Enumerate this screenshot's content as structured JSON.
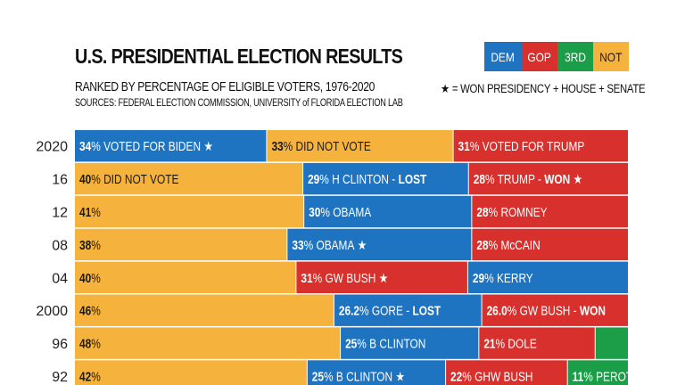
{
  "header": {
    "title": "U.S. PRESIDENTIAL ELECTION RESULTS",
    "subtitle": "RANKED BY PERCENTAGE OF ELIGIBLE VOTERS, 1976-2020",
    "sources": "SOURCES: FEDERAL ELECTION COMMISSION, UNIVERSITY of FLORIDA ELECTION LAB",
    "note": "★ = WON PRESIDENCY + HOUSE + SENATE"
  },
  "legend": [
    {
      "label": "DEM",
      "color": "#1e74c1"
    },
    {
      "label": "GOP",
      "color": "#d8312d"
    },
    {
      "label": "3RD",
      "color": "#1c9e49"
    },
    {
      "label": "NOT",
      "color": "#f5b23d"
    }
  ],
  "chart_data": {
    "type": "bar",
    "stacked": true,
    "orientation": "horizontal",
    "categories": [
      "2020",
      "16",
      "12",
      "08",
      "04",
      "2000",
      "96",
      "92"
    ],
    "rows": [
      {
        "year": "2020",
        "segments": [
          {
            "party": "DEM",
            "pct": 34,
            "num": "34",
            "text": "VOTED FOR BIDEN",
            "bold": "",
            "star": true
          },
          {
            "party": "NOT",
            "pct": 33,
            "num": "33",
            "text": "DID NOT VOTE",
            "bold": "",
            "star": false
          },
          {
            "party": "GOP",
            "pct": 31,
            "num": "31",
            "text": "VOTED FOR TRUMP",
            "bold": "",
            "star": false
          }
        ]
      },
      {
        "year": "16",
        "segments": [
          {
            "party": "NOT",
            "pct": 40,
            "num": "40",
            "text": "DID NOT VOTE",
            "bold": "",
            "star": false
          },
          {
            "party": "DEM",
            "pct": 29,
            "num": "29",
            "text": "H CLINTON -",
            "bold": "LOST",
            "star": false
          },
          {
            "party": "GOP",
            "pct": 28,
            "num": "28",
            "text": "TRUMP -",
            "bold": "WON",
            "star": true
          }
        ]
      },
      {
        "year": "12",
        "segments": [
          {
            "party": "NOT",
            "pct": 41,
            "num": "41",
            "text": "",
            "bold": "",
            "star": false
          },
          {
            "party": "DEM",
            "pct": 30,
            "num": "30",
            "text": "OBAMA",
            "bold": "",
            "star": false
          },
          {
            "party": "GOP",
            "pct": 28,
            "num": "28",
            "text": "ROMNEY",
            "bold": "",
            "star": false
          }
        ]
      },
      {
        "year": "08",
        "segments": [
          {
            "party": "NOT",
            "pct": 38,
            "num": "38",
            "text": "",
            "bold": "",
            "star": false
          },
          {
            "party": "DEM",
            "pct": 33,
            "num": "33",
            "text": "OBAMA",
            "bold": "",
            "star": true
          },
          {
            "party": "GOP",
            "pct": 28,
            "num": "28",
            "text": "McCAIN",
            "bold": "",
            "star": false
          }
        ]
      },
      {
        "year": "04",
        "segments": [
          {
            "party": "NOT",
            "pct": 40,
            "num": "40",
            "text": "",
            "bold": "",
            "star": false
          },
          {
            "party": "GOP",
            "pct": 31,
            "num": "31",
            "text": "GW BUSH",
            "bold": "",
            "star": true
          },
          {
            "party": "DEM",
            "pct": 29,
            "num": "29",
            "text": "KERRY",
            "bold": "",
            "star": false
          }
        ]
      },
      {
        "year": "2000",
        "segments": [
          {
            "party": "NOT",
            "pct": 46,
            "num": "46",
            "text": "",
            "bold": "",
            "star": false
          },
          {
            "party": "DEM",
            "pct": 26.2,
            "num": "26.2",
            "text": "GORE -",
            "bold": "LOST",
            "star": false
          },
          {
            "party": "GOP",
            "pct": 26.0,
            "num": "26.0",
            "text": "GW BUSH -",
            "bold": "WON",
            "star": false
          }
        ]
      },
      {
        "year": "96",
        "segments": [
          {
            "party": "NOT",
            "pct": 48,
            "num": "48",
            "text": "",
            "bold": "",
            "star": false
          },
          {
            "party": "DEM",
            "pct": 25,
            "num": "25",
            "text": "B CLINTON",
            "bold": "",
            "star": false
          },
          {
            "party": "GOP",
            "pct": 21,
            "num": "21",
            "text": "DOLE",
            "bold": "",
            "star": false
          },
          {
            "party": "3RD",
            "pct": 6,
            "num": "",
            "text": "",
            "bold": "",
            "star": false
          }
        ]
      },
      {
        "year": "92",
        "segments": [
          {
            "party": "NOT",
            "pct": 42,
            "num": "42",
            "text": "",
            "bold": "",
            "star": false
          },
          {
            "party": "DEM",
            "pct": 25,
            "num": "25",
            "text": "B CLINTON",
            "bold": "",
            "star": true
          },
          {
            "party": "GOP",
            "pct": 22,
            "num": "22",
            "text": "GHW BUSH",
            "bold": "",
            "star": false
          },
          {
            "party": "3RD",
            "pct": 11,
            "num": "11",
            "text": "PEROT",
            "bold": "",
            "star": false
          }
        ]
      }
    ]
  }
}
